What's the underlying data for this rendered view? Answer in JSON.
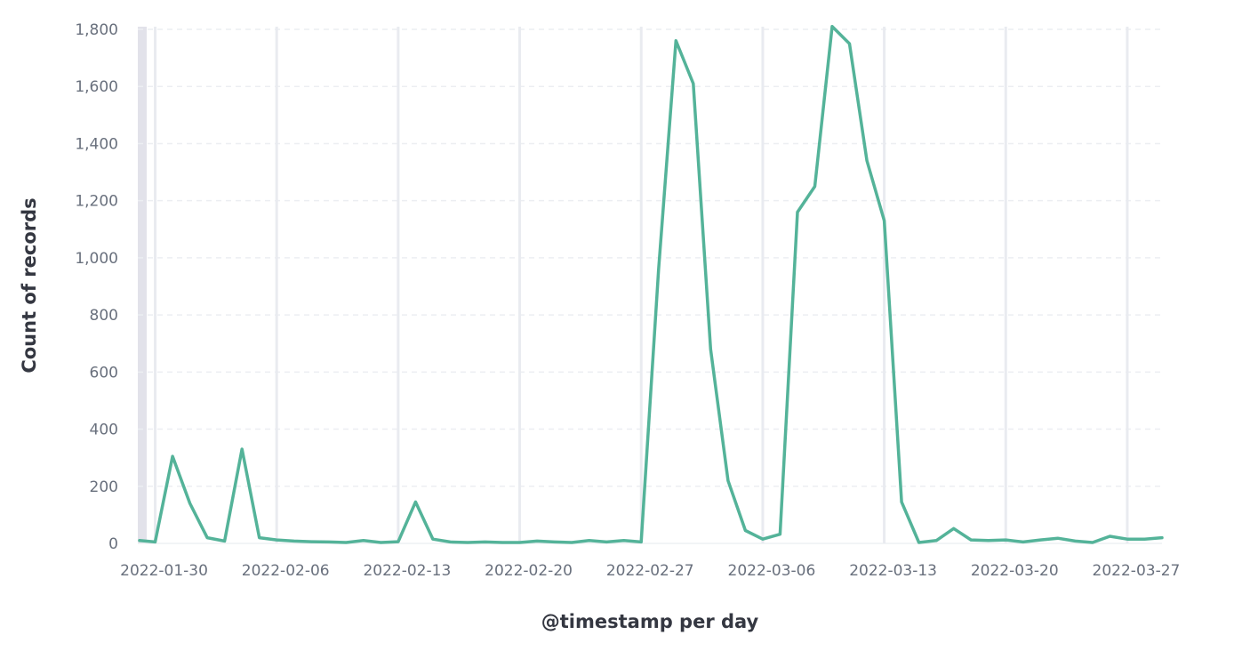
{
  "chart_data": {
    "type": "line",
    "title": "",
    "xlabel": "@timestamp per day",
    "ylabel": "Count of records",
    "ylim": [
      0,
      1800
    ],
    "yticks": [
      0,
      200,
      400,
      600,
      800,
      1000,
      1200,
      1400,
      1600,
      1800
    ],
    "ytick_labels": [
      "0",
      "200",
      "400",
      "600",
      "800",
      "1,000",
      "1,200",
      "1,400",
      "1,600",
      "1,800"
    ],
    "xlim": [
      "2022-01-29",
      "2022-03-29"
    ],
    "xticks": [
      "2022-01-30",
      "2022-02-06",
      "2022-02-13",
      "2022-02-20",
      "2022-02-27",
      "2022-03-06",
      "2022-03-13",
      "2022-03-20",
      "2022-03-27"
    ],
    "xtick_labels": [
      "2022-01-30",
      "2022-02-06",
      "2022-02-13",
      "2022-02-20",
      "2022-02-27",
      "2022-03-06",
      "2022-03-13",
      "2022-03-20",
      "2022-03-27"
    ],
    "grid": true,
    "shaded_range": [
      "2022-01-29",
      "2022-01-29T12:00"
    ],
    "line_color": "#54b399",
    "series": [
      {
        "x": [
          "2022-01-29",
          "2022-01-30",
          "2022-01-31",
          "2022-02-01",
          "2022-02-02",
          "2022-02-03",
          "2022-02-04",
          "2022-02-05",
          "2022-02-06",
          "2022-02-07",
          "2022-02-08",
          "2022-02-09",
          "2022-02-10",
          "2022-02-11",
          "2022-02-12",
          "2022-02-13",
          "2022-02-14",
          "2022-02-15",
          "2022-02-16",
          "2022-02-17",
          "2022-02-18",
          "2022-02-19",
          "2022-02-20",
          "2022-02-21",
          "2022-02-22",
          "2022-02-23",
          "2022-02-24",
          "2022-02-25",
          "2022-02-26",
          "2022-02-27",
          "2022-02-28",
          "2022-03-01",
          "2022-03-02",
          "2022-03-03",
          "2022-03-04",
          "2022-03-05",
          "2022-03-06",
          "2022-03-07",
          "2022-03-08",
          "2022-03-09",
          "2022-03-10",
          "2022-03-11",
          "2022-03-12",
          "2022-03-13",
          "2022-03-14",
          "2022-03-15",
          "2022-03-16",
          "2022-03-17",
          "2022-03-18",
          "2022-03-19",
          "2022-03-20",
          "2022-03-21",
          "2022-03-22",
          "2022-03-23",
          "2022-03-24",
          "2022-03-25",
          "2022-03-26",
          "2022-03-27",
          "2022-03-28",
          "2022-03-29"
        ],
        "values": [
          10,
          5,
          305,
          140,
          20,
          8,
          330,
          20,
          12,
          8,
          6,
          5,
          3,
          10,
          3,
          6,
          145,
          15,
          5,
          3,
          5,
          3,
          3,
          8,
          5,
          3,
          10,
          5,
          10,
          5,
          960,
          1760,
          1610,
          680,
          220,
          45,
          15,
          32,
          1160,
          1250,
          1810,
          1750,
          1340,
          1130,
          145,
          3,
          10,
          52,
          12,
          10,
          12,
          5,
          12,
          18,
          8,
          3,
          25,
          15,
          15,
          20
        ]
      }
    ]
  }
}
